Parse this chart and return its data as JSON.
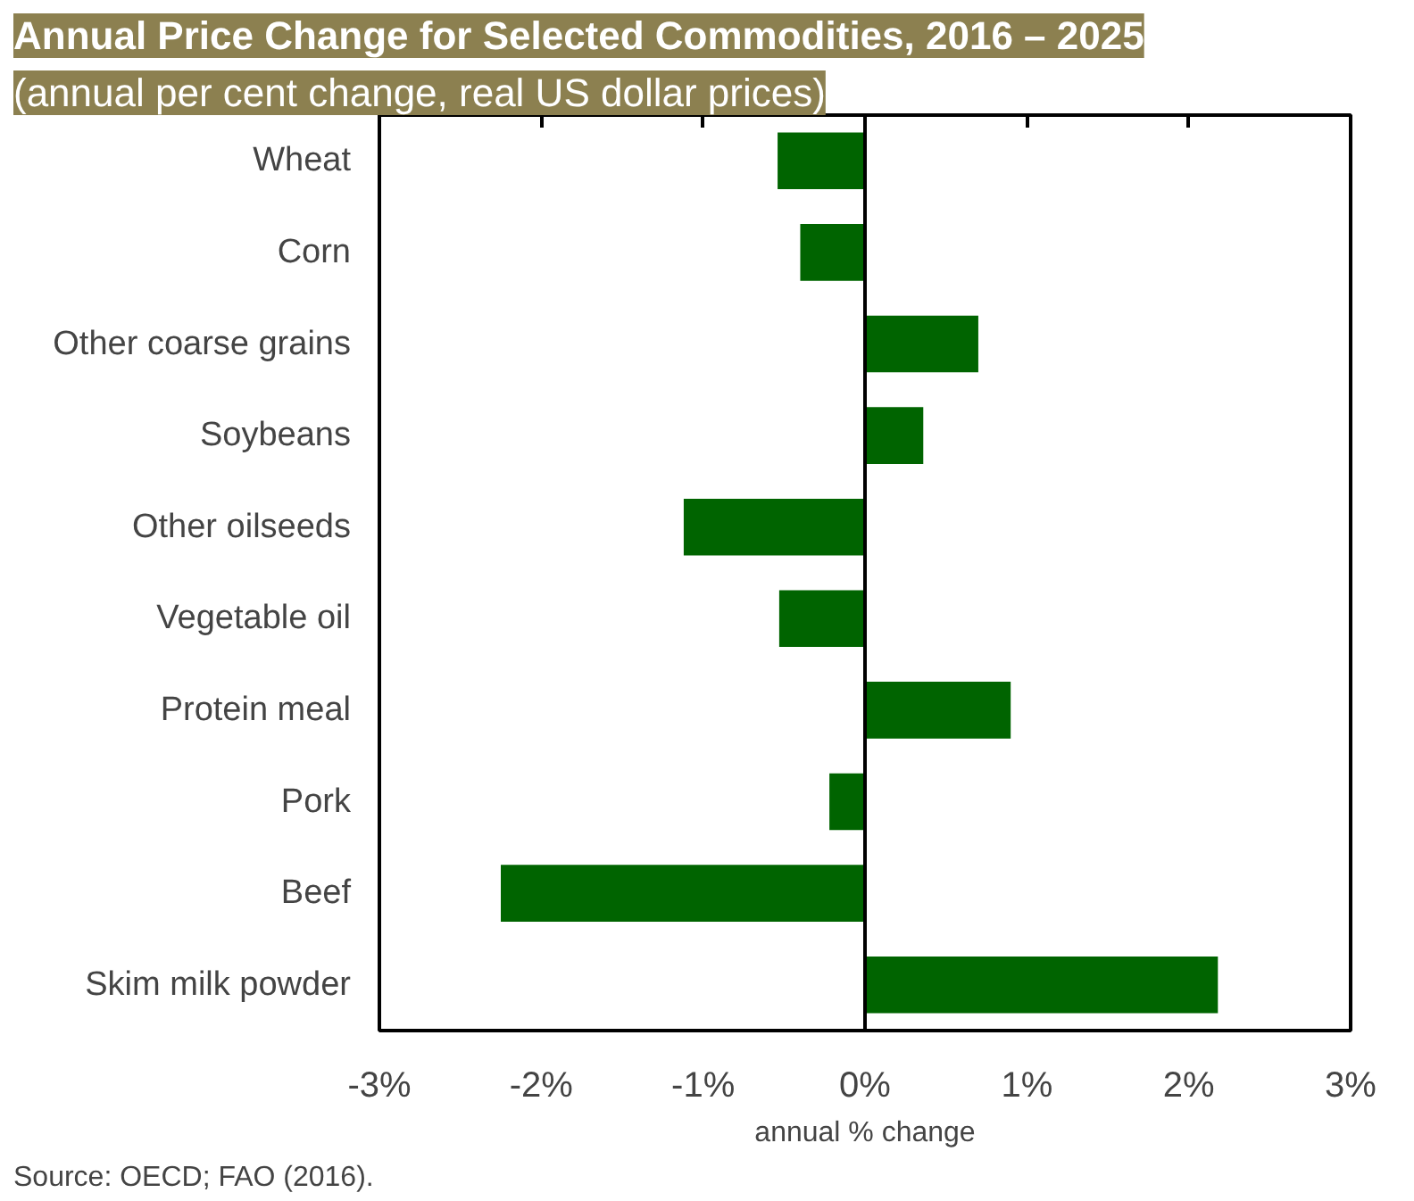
{
  "chart_data": {
    "type": "bar",
    "orientation": "horizontal",
    "title": "Annual Price Change for Selected Commodities, 2016 – 2025",
    "subtitle": "(annual per cent change, real US dollar prices)",
    "xlabel": "annual % change",
    "categories": [
      "Wheat",
      "Corn",
      "Other coarse grains",
      "Soybeans",
      "Other oilseeds",
      "Vegetable oil",
      "Protein meal",
      "Pork",
      "Beef",
      "Skim milk powder"
    ],
    "values": [
      -0.54,
      -0.4,
      0.7,
      0.36,
      -1.12,
      -0.53,
      0.9,
      -0.22,
      -2.25,
      2.18
    ],
    "color": "#006400",
    "xlim": [
      -3,
      3
    ],
    "xticks": [
      {
        "value": -3,
        "label": "-3%"
      },
      {
        "value": -2,
        "label": "-2%"
      },
      {
        "value": -1,
        "label": "-1%"
      },
      {
        "value": 0,
        "label": "0%"
      },
      {
        "value": 1,
        "label": "1%"
      },
      {
        "value": 2,
        "label": "2%"
      },
      {
        "value": 3,
        "label": "3%"
      }
    ],
    "annotations": [
      "Source: OECD; FAO (2016)."
    ]
  }
}
